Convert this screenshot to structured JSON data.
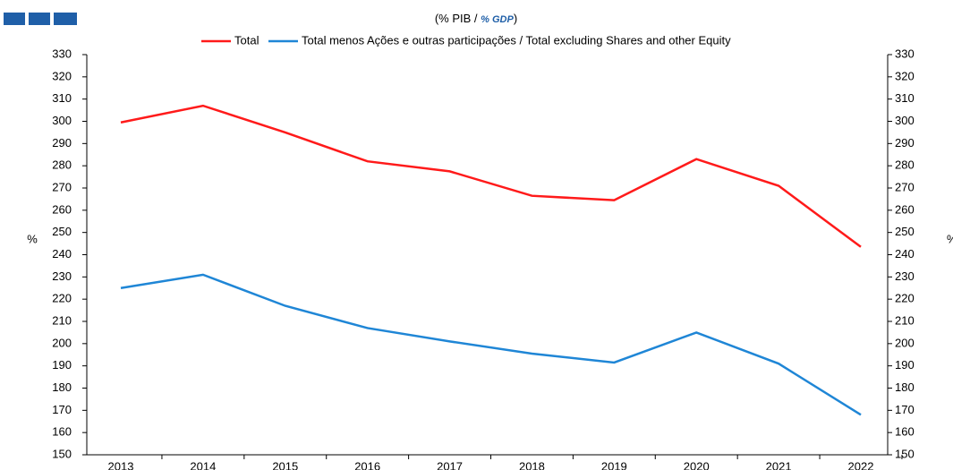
{
  "chart_data": {
    "type": "line",
    "title_parts": [
      "(% PIB / ",
      "% GDP",
      ")"
    ],
    "ylabel": "%",
    "y2label": "%",
    "categories": [
      "2013",
      "2014",
      "2015",
      "2016",
      "2017",
      "2018",
      "2019",
      "2020",
      "2021",
      "2022"
    ],
    "series": [
      {
        "name": "Total",
        "color": "#ff1a1a",
        "values": [
          299.5,
          307,
          295,
          282,
          277.5,
          266.5,
          264.5,
          283,
          271,
          243.5
        ]
      },
      {
        "name": "Total menos Ações e outras participações / Total excluding Shares and other Equity",
        "color": "#1f86d6",
        "values": [
          225,
          231,
          217,
          207,
          201,
          195.5,
          191.5,
          205,
          191,
          168
        ]
      }
    ],
    "ylim": [
      150,
      330
    ],
    "yticks": [
      150,
      160,
      170,
      180,
      190,
      200,
      210,
      220,
      230,
      240,
      250,
      260,
      270,
      280,
      290,
      300,
      310,
      320,
      330
    ],
    "y2lim": [
      150,
      330
    ],
    "y2ticks": [
      150,
      160,
      170,
      180,
      190,
      200,
      210,
      220,
      230,
      240,
      250,
      260,
      270,
      280,
      290,
      300,
      310,
      320,
      330
    ],
    "legend": "top"
  }
}
